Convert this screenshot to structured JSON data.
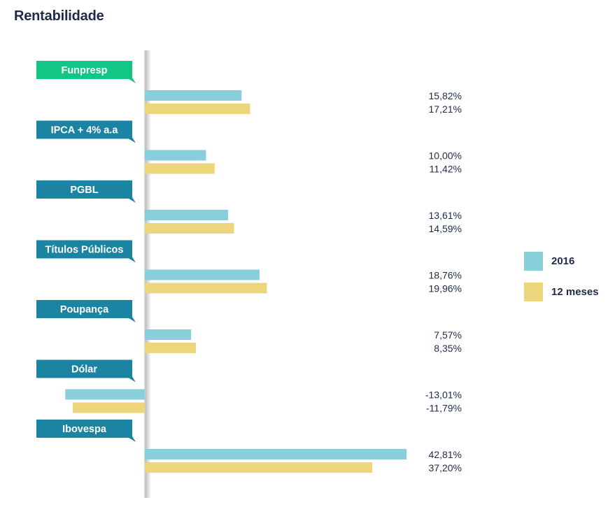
{
  "page": {
    "title": "Rentabilidade"
  },
  "colors": {
    "series_2016": "#88cfdb",
    "series_12m": "#ecd57a",
    "label_default": "#1b84a3",
    "label_highlight": "#12c686",
    "text": "#1e2a4a"
  },
  "chart_data": {
    "type": "bar",
    "orientation": "horizontal",
    "title": "Rentabilidade",
    "categories": [
      "Funpresp",
      "IPCA + 4% a.a",
      "PGBL",
      "Títulos Públicos",
      "Poupança",
      "Dólar",
      "Ibovespa"
    ],
    "highlight_category": "Funpresp",
    "series": [
      {
        "name": "2016",
        "values": [
          15.82,
          10.0,
          13.61,
          18.76,
          7.57,
          -13.01,
          42.81
        ]
      },
      {
        "name": "12 meses",
        "values": [
          17.21,
          11.42,
          14.59,
          19.96,
          8.35,
          -11.79,
          37.2
        ]
      }
    ],
    "value_labels": [
      [
        "15,82%",
        "17,21%"
      ],
      [
        "10,00%",
        "11,42%"
      ],
      [
        "13,61%",
        "14,59%"
      ],
      [
        "18,76%",
        "19,96%"
      ],
      [
        "7,57%",
        "8,35%"
      ],
      [
        "-13,01%",
        "-11,79%"
      ],
      [
        "42,81%",
        "37,20%"
      ]
    ],
    "legend_placement": "right",
    "grid": false
  }
}
